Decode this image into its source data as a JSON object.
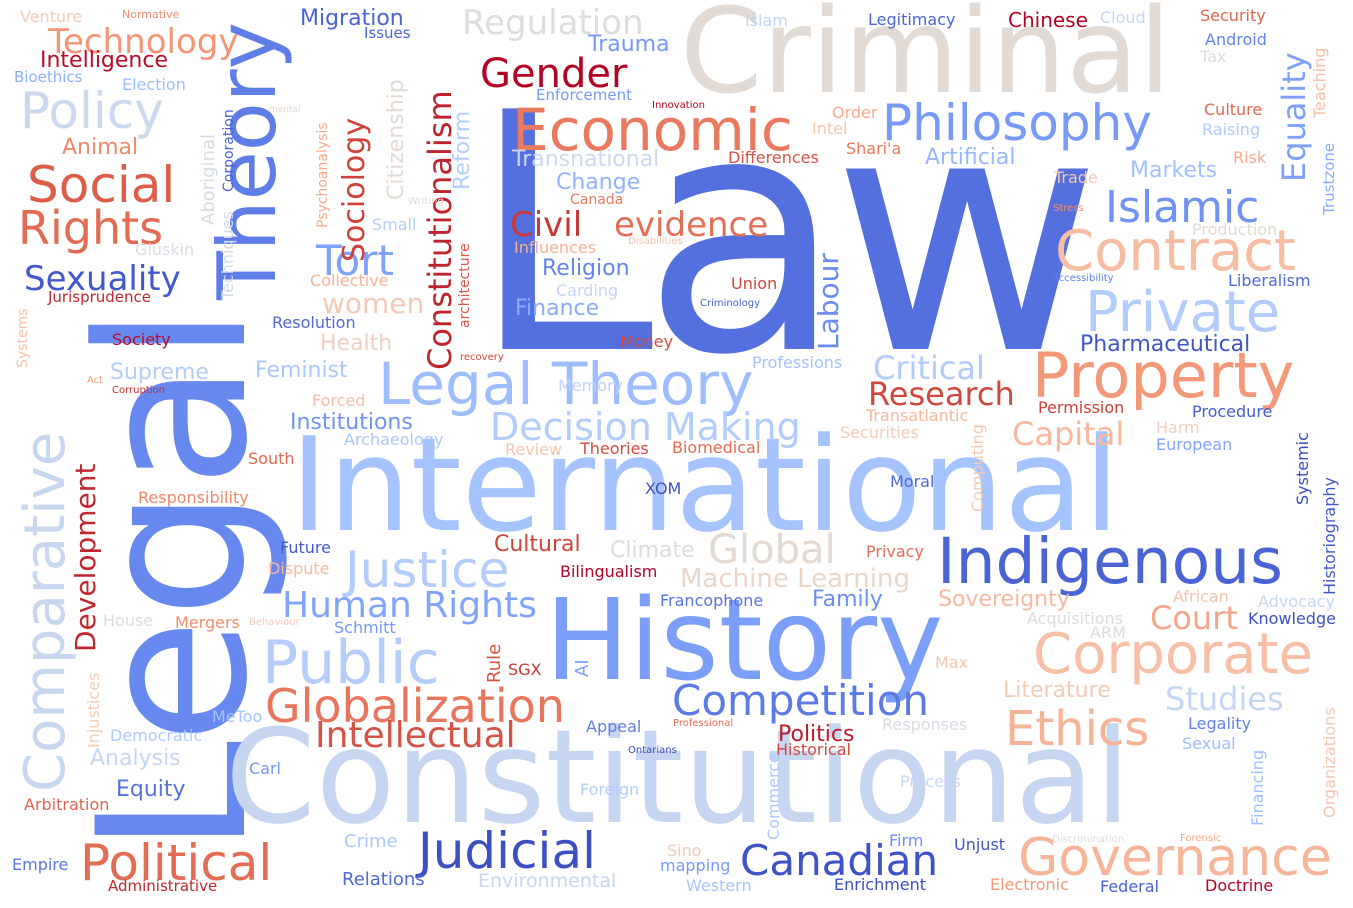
{
  "words": [
    {
      "text": "Law",
      "color": "#5470de"
    },
    {
      "text": "Legal",
      "color": "#6788ee"
    },
    {
      "text": "International",
      "color": "#a5c3fe"
    },
    {
      "text": "Constitutional",
      "color": "#c6d6f1"
    },
    {
      "text": "History",
      "color": "#7b9ff9"
    },
    {
      "text": "Criminal",
      "color": "#e2dad5"
    },
    {
      "text": "Theory",
      "color": "#5e7de7"
    },
    {
      "text": "Comparative",
      "color": "#c7d7f0"
    },
    {
      "text": "Economic",
      "color": "#e97a5f"
    },
    {
      "text": "Indigenous",
      "color": "#4b64d5"
    },
    {
      "text": "Property",
      "color": "#f4987a"
    },
    {
      "text": "Corporate",
      "color": "#f6bfa6"
    },
    {
      "text": "Contract",
      "color": "#f6bda2"
    },
    {
      "text": "Private",
      "color": "#b2ccfb"
    },
    {
      "text": "Philosophy",
      "color": "#779af7"
    },
    {
      "text": "Legal Theory",
      "color": "#9dbdff"
    },
    {
      "text": "Governance",
      "color": "#f7b599"
    },
    {
      "text": "Political",
      "color": "#e36c55"
    },
    {
      "text": "Judicial",
      "color": "#3d50c3"
    },
    {
      "text": "Canadian",
      "color": "#3f53c6"
    },
    {
      "text": "Ethics",
      "color": "#f7b396"
    },
    {
      "text": "Public",
      "color": "#b5cdfa"
    },
    {
      "text": "Competition",
      "color": "#5b7ae5"
    },
    {
      "text": "Justice",
      "color": "#b2ccfb"
    },
    {
      "text": "Globalization",
      "color": "#e8765c"
    },
    {
      "text": "Social",
      "color": "#dc5d4a"
    },
    {
      "text": "Rights",
      "color": "#e36b54"
    },
    {
      "text": "Policy",
      "color": "#cbd8ee"
    },
    {
      "text": "Decision Making",
      "color": "#b2ccfb"
    },
    {
      "text": "Islamic",
      "color": "#6f92f3"
    },
    {
      "text": "Human Rights",
      "color": "#81a4fb"
    },
    {
      "text": "Intellectual",
      "color": "#d65244"
    },
    {
      "text": "Global",
      "color": "#e3d9d3"
    },
    {
      "text": "Gender",
      "color": "#b40426"
    },
    {
      "text": "Regulation",
      "color": "#dcdddd"
    },
    {
      "text": "Technology",
      "color": "#f39577"
    },
    {
      "text": "Tort",
      "color": "#7ea1fa"
    },
    {
      "text": "Sexuality",
      "color": "#4358cb"
    },
    {
      "text": "evidence",
      "color": "#e46e56"
    },
    {
      "text": "Civil",
      "color": "#c83836"
    },
    {
      "text": "Research",
      "color": "#d0473d"
    },
    {
      "text": "Studies",
      "color": "#c5d6f2"
    },
    {
      "text": "Capital",
      "color": "#f7b89c"
    },
    {
      "text": "Critical",
      "color": "#b1cbfc"
    },
    {
      "text": "Court",
      "color": "#f2a689"
    },
    {
      "text": "Equality",
      "color": "#7da0f9"
    },
    {
      "text": "Sociology",
      "color": "#cd423b"
    },
    {
      "text": "Constitutionalism",
      "color": "#be242e"
    },
    {
      "text": "Development",
      "color": "#c0282f"
    },
    {
      "text": "Labour",
      "color": "#6a8bef"
    },
    {
      "text": "women",
      "color": "#f2cab5"
    },
    {
      "text": "Machine Learning",
      "color": "#ead5c9"
    },
    {
      "text": "Religion",
      "color": "#6384eb"
    },
    {
      "text": "Migration",
      "color": "#4a63d3"
    },
    {
      "text": "Intelligence",
      "color": "#b70d28"
    },
    {
      "text": "Cultural",
      "color": "#cf453c"
    },
    {
      "text": "Feminist",
      "color": "#aac7fd"
    },
    {
      "text": "Institutions",
      "color": "#7093f3"
    },
    {
      "text": "Finance",
      "color": "#88abfd"
    },
    {
      "text": "Supreme",
      "color": "#b3cdfb"
    },
    {
      "text": "Change",
      "color": "#90b2fe"
    },
    {
      "text": "Pharmaceutical",
      "color": "#4055c8"
    },
    {
      "text": "Politics",
      "color": "#bb1b2c"
    },
    {
      "text": "Family",
      "color": "#6c8ff1"
    },
    {
      "text": "Sovereignty",
      "color": "#f7ba9f"
    },
    {
      "text": "Climate",
      "color": "#dddcdc"
    },
    {
      "text": "Markets",
      "color": "#a1c0ff"
    },
    {
      "text": "Artificial",
      "color": "#97b8ff"
    },
    {
      "text": "Literature",
      "color": "#f2cbb7"
    },
    {
      "text": "Transnational",
      "color": "#cad8ef"
    },
    {
      "text": "Trauma",
      "color": "#7597f6"
    },
    {
      "text": "Reform",
      "color": "#b6cefa"
    },
    {
      "text": "Citizenship",
      "color": "#e4d9d2"
    },
    {
      "text": "Equity",
      "color": "#5572df"
    },
    {
      "text": "Analysis",
      "color": "#c5d6f2"
    },
    {
      "text": "Health",
      "color": "#efcfbf"
    },
    {
      "text": "Procedure",
      "color": "#465ecf"
    },
    {
      "text": "Animal",
      "color": "#f08a6c"
    },
    {
      "text": "Human Rights",
      "color": "#81a4fb"
    },
    {
      "text": "Aboriginal",
      "color": "#d5dbe5"
    },
    {
      "text": "Psychoanalysis",
      "color": "#f7aa8c"
    },
    {
      "text": "Corporation",
      "color": "#4961d2"
    },
    {
      "text": "Bioethics",
      "color": "#8caffe"
    },
    {
      "text": "Election",
      "color": "#9ebeff"
    },
    {
      "text": "Venture",
      "color": "#f2cbb7"
    },
    {
      "text": "Normative",
      "color": "#f08b6e"
    },
    {
      "text": "Issues",
      "color": "#4b64d5"
    },
    {
      "text": "Islam",
      "color": "#bfd3f6"
    },
    {
      "text": "Legitimacy",
      "color": "#4b64d5"
    },
    {
      "text": "Chinese",
      "color": "#b40426"
    },
    {
      "text": "Cloud",
      "color": "#c5d6f2"
    },
    {
      "text": "Security",
      "color": "#e0654f"
    },
    {
      "text": "Android",
      "color": "#6384eb"
    },
    {
      "text": "Tax",
      "color": "#dcdddd"
    },
    {
      "text": "Teaching",
      "color": "#f5c0a7"
    },
    {
      "text": "Trustzone",
      "color": "#88abfd"
    },
    {
      "text": "Enforcement",
      "color": "#779af7"
    },
    {
      "text": "Innovation",
      "color": "#b40426"
    },
    {
      "text": "mental",
      "color": "#e3d9d3"
    },
    {
      "text": "Culture",
      "color": "#e26952"
    },
    {
      "text": "Raising",
      "color": "#b1cbfc"
    },
    {
      "text": "Order",
      "color": "#f7ac8e"
    },
    {
      "text": "Intel",
      "color": "#f4c6af"
    },
    {
      "text": "Differences",
      "color": "#d65244"
    },
    {
      "text": "Shari'a",
      "color": "#e9785d"
    },
    {
      "text": "Risk",
      "color": "#f7aa8c"
    },
    {
      "text": "Trade",
      "color": "#f2c9b4"
    },
    {
      "text": "Stress",
      "color": "#f08a6c"
    },
    {
      "text": "Writing",
      "color": "#e8d6cc"
    },
    {
      "text": "Canada",
      "color": "#e97a5f"
    },
    {
      "text": "Small",
      "color": "#b5cdfa"
    },
    {
      "text": "Gluskin",
      "color": "#d9dce1"
    },
    {
      "text": "Influences",
      "color": "#f7b194"
    },
    {
      "text": "Disabilities",
      "color": "#f4c5ad"
    },
    {
      "text": "Production",
      "color": "#e3d9d3"
    },
    {
      "text": "Techniques",
      "color": "#d1dae9"
    },
    {
      "text": "Collective",
      "color": "#f7b194"
    },
    {
      "text": "Carding",
      "color": "#c5d6f2"
    },
    {
      "text": "Union",
      "color": "#d0473d"
    },
    {
      "text": "Accessibility",
      "color": "#5f7fe8"
    },
    {
      "text": "Liberalism",
      "color": "#4f69d9"
    },
    {
      "text": "Criminology",
      "color": "#4961d2"
    },
    {
      "text": "Jurisprudence",
      "color": "#c0282f"
    },
    {
      "text": "architecture",
      "color": "#d95847"
    },
    {
      "text": "Systems",
      "color": "#f5c1a9"
    },
    {
      "text": "Resolution",
      "color": "#4e68d8"
    },
    {
      "text": "Society",
      "color": "#b70d28"
    },
    {
      "text": "Money",
      "color": "#d24b40"
    },
    {
      "text": "recovery",
      "color": "#d0473d"
    },
    {
      "text": "Professions",
      "color": "#a3c2fe"
    },
    {
      "text": "Act",
      "color": "#f5a081"
    },
    {
      "text": "Corruption",
      "color": "#c43032"
    },
    {
      "text": "Memory",
      "color": "#bfd3f6"
    },
    {
      "text": "Forced",
      "color": "#f6bfa6"
    },
    {
      "text": "Permission",
      "color": "#cc403a"
    },
    {
      "text": "Harm",
      "color": "#efcfbf"
    },
    {
      "text": "Transatlantic",
      "color": "#f7b89c"
    },
    {
      "text": "Archaeology",
      "color": "#aac7fd"
    },
    {
      "text": "Securities",
      "color": "#f2cab5"
    },
    {
      "text": "European",
      "color": "#80a3fa"
    },
    {
      "text": "Review",
      "color": "#f4c5ad"
    },
    {
      "text": "Theories",
      "color": "#d24b40"
    },
    {
      "text": "Biomedical",
      "color": "#e36c55"
    },
    {
      "text": "South",
      "color": "#e16751"
    },
    {
      "text": "Computing",
      "color": "#f3c8b2"
    },
    {
      "text": "Systemic",
      "color": "#3b4cc0"
    },
    {
      "text": "Historiography",
      "color": "#4358cb"
    },
    {
      "text": "Responsibility",
      "color": "#ef886b"
    },
    {
      "text": "XOM",
      "color": "#3d50c3"
    },
    {
      "text": "Moral",
      "color": "#4f69d9"
    },
    {
      "text": "Future",
      "color": "#445acc"
    },
    {
      "text": "Dispute",
      "color": "#f7b89c"
    },
    {
      "text": "Bilingualism",
      "color": "#b40426"
    },
    {
      "text": "Privacy",
      "color": "#e57058"
    },
    {
      "text": "Francophone",
      "color": "#5875e1"
    },
    {
      "text": "House",
      "color": "#dadce0"
    },
    {
      "text": "Mergers",
      "color": "#f18d6f"
    },
    {
      "text": "Behaviour",
      "color": "#f2cab5"
    },
    {
      "text": "Schmitt",
      "color": "#7597f6"
    },
    {
      "text": "Rule",
      "color": "#d75445"
    },
    {
      "text": "SGX",
      "color": "#c83836"
    },
    {
      "text": "AI",
      "color": "#7da0f9"
    },
    {
      "text": "African",
      "color": "#f5c4ac"
    },
    {
      "text": "Advocacy",
      "color": "#c5d6f2"
    },
    {
      "text": "Acquisitions",
      "color": "#dddcdc"
    },
    {
      "text": "ARM",
      "color": "#dddcdc"
    },
    {
      "text": "Knowledge",
      "color": "#3d50c3"
    },
    {
      "text": "Max",
      "color": "#f4c5ad"
    },
    {
      "text": "Injustices",
      "color": "#f2cbb7"
    },
    {
      "text": "MeToo",
      "color": "#a5c3fe"
    },
    {
      "text": "Democratic",
      "color": "#aec9fc"
    },
    {
      "text": "Appeal",
      "color": "#5f7fe8"
    },
    {
      "text": "Professional",
      "color": "#e36c55"
    },
    {
      "text": "Responses",
      "color": "#d6dce4"
    },
    {
      "text": "Legality",
      "color": "#6282ea"
    },
    {
      "text": "Sexual",
      "color": "#9dbdff"
    },
    {
      "text": "Organizations",
      "color": "#f3c7b1"
    },
    {
      "text": "Historical",
      "color": "#d24b40"
    },
    {
      "text": "Ontarians",
      "color": "#3b4cc0"
    },
    {
      "text": "Carl",
      "color": "#7597f6"
    },
    {
      "text": "Arbitration",
      "color": "#e0654f"
    },
    {
      "text": "Commerce",
      "color": "#aac7fd"
    },
    {
      "text": "Foreign",
      "color": "#b5cdfa"
    },
    {
      "text": "Process",
      "color": "#c5d6f2"
    },
    {
      "text": "Financing",
      "color": "#9ebeff"
    },
    {
      "text": "Crime",
      "color": "#aac7fd"
    },
    {
      "text": "Sino",
      "color": "#f2cbb7"
    },
    {
      "text": "Firm",
      "color": "#6c8ff1"
    },
    {
      "text": "Unjust",
      "color": "#4055c8"
    },
    {
      "text": "Discrimination",
      "color": "#dcdddd"
    },
    {
      "text": "Forensic",
      "color": "#f7aa8c"
    },
    {
      "text": "Empire",
      "color": "#5a78e4"
    },
    {
      "text": "Administrative",
      "color": "#c0282f"
    },
    {
      "text": "Relations",
      "color": "#4e68d8"
    },
    {
      "text": "Environmental",
      "color": "#c6d6f1"
    },
    {
      "text": "mapping",
      "color": "#779af7"
    },
    {
      "text": "Western",
      "color": "#a5c3fe"
    },
    {
      "text": "Enrichment",
      "color": "#3d50c3"
    },
    {
      "text": "Electronic",
      "color": "#f49a7b"
    },
    {
      "text": "Federal",
      "color": "#4961d2"
    },
    {
      "text": "Doctrine",
      "color": "#b40426"
    }
  ]
}
